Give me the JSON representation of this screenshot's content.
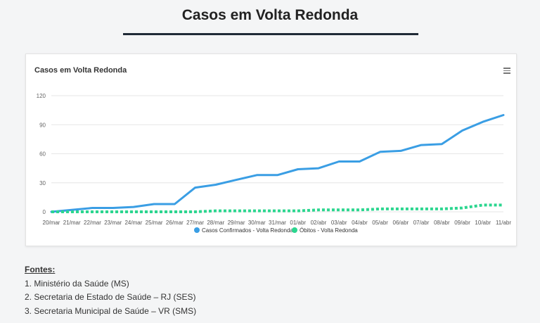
{
  "page": {
    "heading": "Casos em Volta Redonda"
  },
  "chart_data": {
    "type": "line",
    "title": "Casos em Volta Redonda",
    "categories": [
      "20/mar",
      "21/mar",
      "22/mar",
      "23/mar",
      "24/mar",
      "25/mar",
      "26/mar",
      "27/mar",
      "28/mar",
      "29/mar",
      "30/mar",
      "31/mar",
      "01/abr",
      "02/abr",
      "03/abr",
      "04/abr",
      "05/abr",
      "06/abr",
      "07/abr",
      "08/abr",
      "09/abr",
      "10/abr",
      "11/abr"
    ],
    "series": [
      {
        "name": "Casos Confirmados - Volta Redonda",
        "color": "#3a9ee4",
        "style": "solid",
        "values": [
          0,
          2,
          4,
          4,
          5,
          8,
          8,
          25,
          28,
          33,
          38,
          38,
          44,
          45,
          52,
          52,
          62,
          63,
          69,
          70,
          84,
          93,
          100
        ]
      },
      {
        "name": "Óbitos - Volta Redonda",
        "color": "#2bd68f",
        "style": "dotted",
        "values": [
          0,
          0,
          0,
          0,
          0,
          0,
          0,
          0,
          1,
          1,
          1,
          1,
          1,
          2,
          2,
          2,
          3,
          3,
          3,
          3,
          4,
          7,
          7
        ]
      }
    ],
    "yticks": [
      "0",
      "30",
      "60",
      "90",
      "120"
    ],
    "ylim": [
      0,
      120
    ],
    "grid": true,
    "legend": "bottom"
  },
  "fontes": {
    "title": "Fontes:",
    "items": [
      "1. Ministério da Saúde (MS)",
      "2. Secretaria de Estado de Saúde – RJ (SES)",
      "3. Secretaria Municipal de Saúde – VR (SMS)"
    ]
  },
  "icons": {
    "chart_menu": "hamburger-menu-icon"
  }
}
